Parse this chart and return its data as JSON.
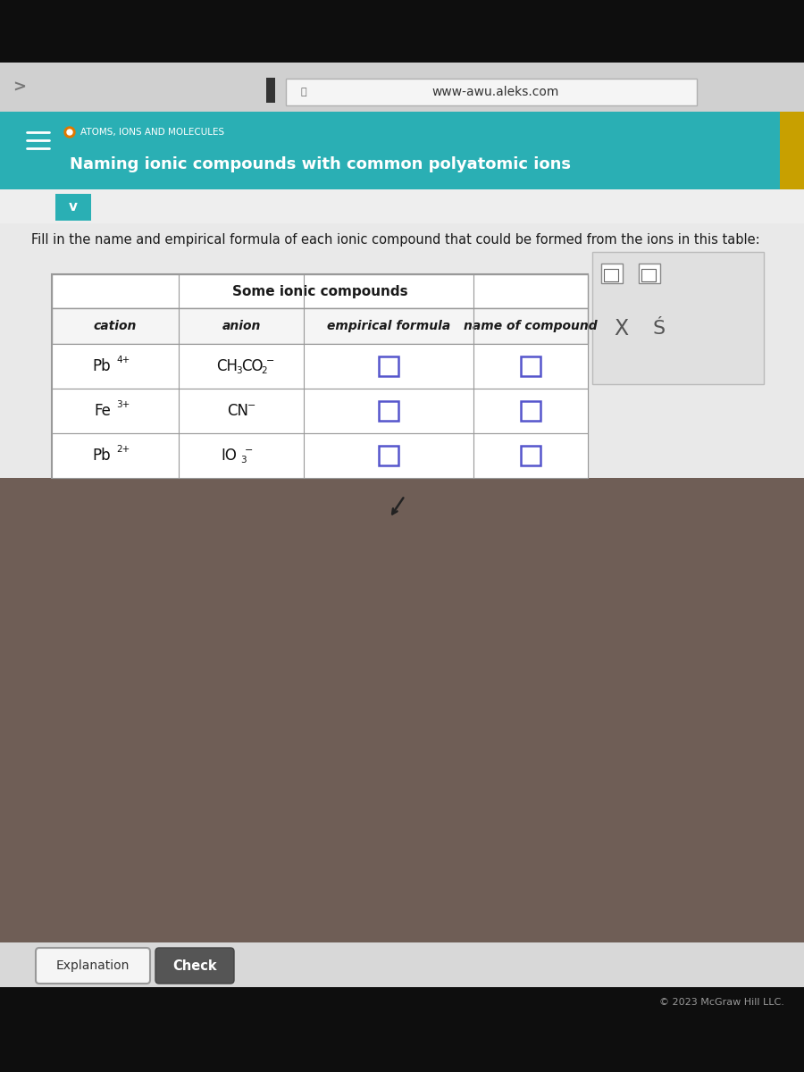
{
  "bg_very_dark": "#0e0e0e",
  "bg_browser_toolbar": "#d2d2d2",
  "bg_teal": "#2aafb4",
  "bg_content": "#e9e9e9",
  "bg_white": "#ffffff",
  "bg_table_header": "#f0f0f0",
  "bg_side_panel": "#e2e2e2",
  "bg_check_btn": "#555555",
  "text_dark": "#1a1a1a",
  "text_white": "#ffffff",
  "text_gray": "#555555",
  "text_light_gray": "#888888",
  "input_border": "#5555cc",
  "table_border": "#999999",
  "gold_bar": "#c8a000",
  "orange_dot": "#e07800",
  "url": "www-awu.aleks.com",
  "breadcrumb": "ATOMS, IONS AND MOLECULES",
  "title": "Naming ionic compounds with common polyatomic ions",
  "instruction": "Fill in the name and empirical formula of each ionic compound that could be formed from the ions in this table:",
  "table_title": "Some ionic compounds",
  "col_headers": [
    "cation",
    "anion",
    "empirical formula",
    "name of compound"
  ],
  "explanation_btn": "Explanation",
  "check_btn": "Check",
  "copyright": "© 2023 McGraw Hill LLC."
}
